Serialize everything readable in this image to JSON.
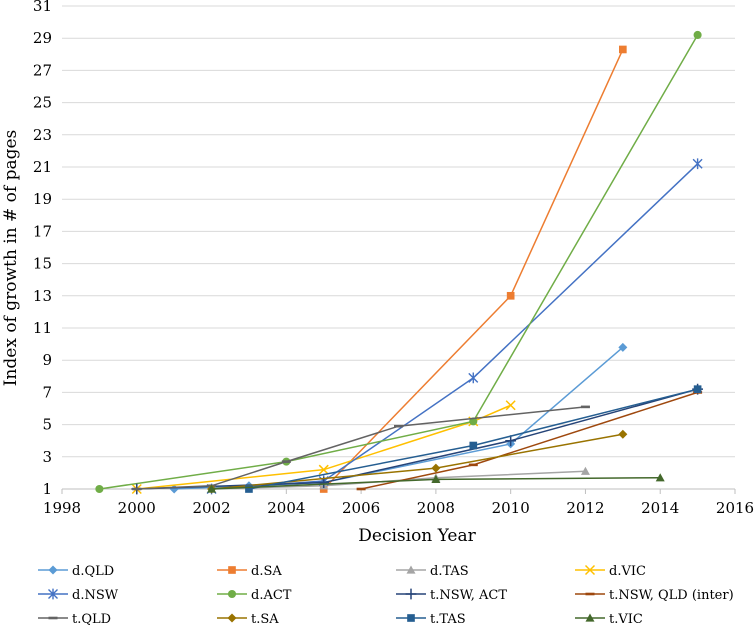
{
  "chart_data": {
    "type": "line",
    "title": "",
    "xlabel": "Decision Year",
    "ylabel": "Index of growth in # of pages",
    "xlim": [
      1998,
      2016
    ],
    "ylim": [
      1,
      31
    ],
    "x_ticks": [
      1998,
      2000,
      2002,
      2004,
      2006,
      2008,
      2010,
      2012,
      2014,
      2016
    ],
    "y_ticks": [
      1,
      3,
      5,
      7,
      9,
      11,
      13,
      15,
      17,
      19,
      21,
      23,
      25,
      27,
      29,
      31
    ],
    "grid": "horizontal",
    "legend_position": "bottom",
    "series": [
      {
        "name": "d.QLD",
        "color": "#5b9bd5",
        "marker": "diamond",
        "points": [
          [
            2001,
            1.0
          ],
          [
            2003,
            1.2
          ],
          [
            2005,
            1.4
          ],
          [
            2010,
            3.8
          ],
          [
            2013,
            9.8
          ]
        ]
      },
      {
        "name": "d.SA",
        "color": "#ed7d31",
        "marker": "square",
        "points": [
          [
            2005,
            1.0
          ],
          [
            2010,
            13.0
          ],
          [
            2013,
            28.3
          ]
        ]
      },
      {
        "name": "d.TAS",
        "color": "#a5a5a5",
        "marker": "triangle",
        "points": [
          [
            2002,
            1.0
          ],
          [
            2005,
            1.2
          ],
          [
            2008,
            1.7
          ],
          [
            2012,
            2.1
          ]
        ]
      },
      {
        "name": "d.VIC",
        "color": "#ffc000",
        "marker": "x",
        "points": [
          [
            2000,
            1.0
          ],
          [
            2005,
            2.2
          ],
          [
            2009,
            5.2
          ],
          [
            2010,
            6.2
          ]
        ]
      },
      {
        "name": "d.NSW",
        "color": "#4472c4",
        "marker": "star",
        "points": [
          [
            2002,
            1.0
          ],
          [
            2005,
            1.5
          ],
          [
            2009,
            7.9
          ],
          [
            2015,
            21.2
          ]
        ]
      },
      {
        "name": "d.ACT",
        "color": "#70ad47",
        "marker": "circle",
        "points": [
          [
            1999,
            1.0
          ],
          [
            2004,
            2.7
          ],
          [
            2009,
            5.2
          ],
          [
            2015,
            29.2
          ]
        ]
      },
      {
        "name": "t.NSW, ACT",
        "color": "#264478",
        "marker": "plus",
        "points": [
          [
            2000,
            1.0
          ],
          [
            2005,
            1.4
          ],
          [
            2010,
            4.0
          ],
          [
            2015,
            7.2
          ]
        ]
      },
      {
        "name": "t.NSW, QLD (inter)",
        "color": "#9e480e",
        "marker": "dash",
        "points": [
          [
            2006,
            1.0
          ],
          [
            2009,
            2.5
          ],
          [
            2015,
            7.0
          ]
        ]
      },
      {
        "name": "t.QLD",
        "color": "#636363",
        "marker": "dash",
        "points": [
          [
            2000,
            1.0
          ],
          [
            2002,
            1.2
          ],
          [
            2004,
            2.7
          ],
          [
            2007,
            4.9
          ],
          [
            2012,
            6.1
          ]
        ]
      },
      {
        "name": "t.SA",
        "color": "#997300",
        "marker": "diamond",
        "points": [
          [
            2002,
            1.0
          ],
          [
            2008,
            2.3
          ],
          [
            2013,
            4.4
          ]
        ]
      },
      {
        "name": "t.TAS",
        "color": "#255e91",
        "marker": "square",
        "points": [
          [
            2003,
            1.0
          ],
          [
            2009,
            3.7
          ],
          [
            2015,
            7.2
          ]
        ]
      },
      {
        "name": "t.VIC",
        "color": "#43682b",
        "marker": "triangle",
        "points": [
          [
            2002,
            1.0
          ],
          [
            2008,
            1.6
          ],
          [
            2014,
            1.7
          ]
        ]
      }
    ]
  }
}
